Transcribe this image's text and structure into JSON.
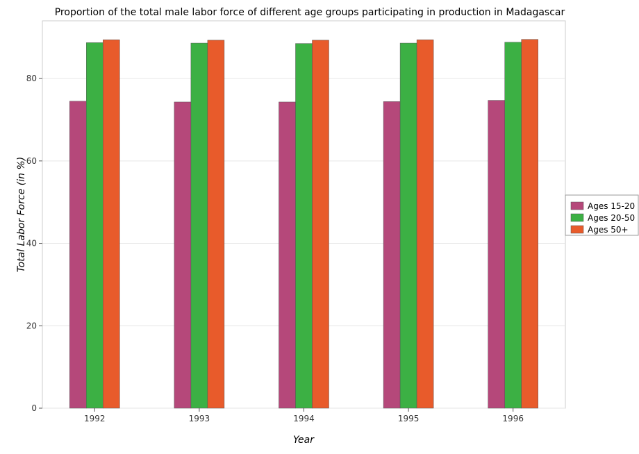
{
  "chart_data": {
    "type": "bar",
    "title": "Proportion of the total male labor force of different age groups participating in production in Madagascar",
    "xlabel": "Year",
    "ylabel": "Total Labor Force (in %)",
    "categories": [
      "1992",
      "1993",
      "1994",
      "1995",
      "1996"
    ],
    "series": [
      {
        "name": "Ages 15-20",
        "color": "#b5487a",
        "values": [
          74.5,
          74.3,
          74.3,
          74.4,
          74.7
        ]
      },
      {
        "name": "Ages 20-50",
        "color": "#3cb044",
        "values": [
          88.7,
          88.6,
          88.5,
          88.6,
          88.8
        ]
      },
      {
        "name": "Ages 50+",
        "color": "#e85b2b",
        "values": [
          89.4,
          89.3,
          89.3,
          89.4,
          89.5
        ]
      }
    ],
    "ylim": [
      0,
      94
    ],
    "yticks": [
      0,
      20,
      40,
      60,
      80
    ],
    "grid": true,
    "legend": "right"
  }
}
